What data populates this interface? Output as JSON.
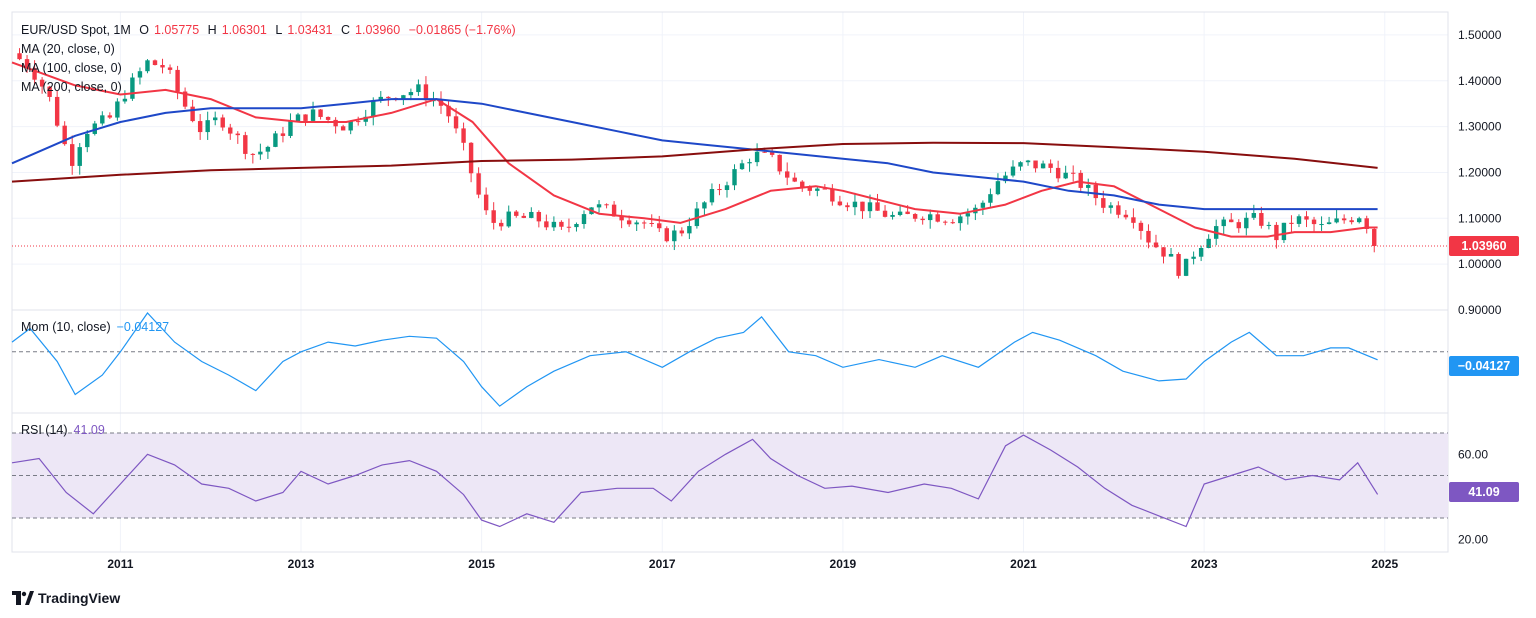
{
  "header": {
    "symbol": "EUR/USD Spot, 1M",
    "open_label": "O",
    "open": "1.05775",
    "high_label": "H",
    "high": "1.06301",
    "low_label": "L",
    "low": "1.03431",
    "close_label": "C",
    "close": "1.03960",
    "change": "−0.01865 (−1.76%)"
  },
  "indicators": {
    "ma20": "MA (20, close, 0)",
    "ma100": "MA (100, close, 0)",
    "ma200": "MA (200, close, 0)",
    "mom_label": "Mom (10, close)",
    "mom_value": "−0.04127",
    "rsi_label": "RSI (14)",
    "rsi_value": "41.09"
  },
  "price_tags": {
    "last_price": "1.03960",
    "mom_last": "−0.04127",
    "rsi_last": "41.09"
  },
  "brand": {
    "name": "TradingView"
  },
  "colors": {
    "up": "#089981",
    "down": "#f23645",
    "ma20": "#f23645",
    "ma100": "#1e48c8",
    "ma200": "#880e0e",
    "mom": "#2196f3",
    "rsi": "#7e57c2",
    "rsi_band": "#ede7f6"
  },
  "chart_data": [
    {
      "type": "candlestick",
      "title": "EUR/USD Spot, 1M",
      "y_ticks": [
        "0.90000",
        "1.00000",
        "1.10000",
        "1.20000",
        "1.30000",
        "1.40000",
        "1.50000"
      ],
      "x_ticks": [
        "2011",
        "2013",
        "2015",
        "2017",
        "2019",
        "2021",
        "2023",
        "2025"
      ],
      "ylim": [
        0.9,
        1.55
      ],
      "last_close": 1.0396,
      "close_series": {
        "t": [
          2009.8,
          2010.0,
          2010.2,
          2010.45,
          2010.6,
          2010.9,
          2011.0,
          2011.3,
          2011.5,
          2011.7,
          2011.9,
          2012.1,
          2012.45,
          2012.6,
          2012.9,
          2013.1,
          2013.5,
          2013.8,
          2014.0,
          2014.3,
          2014.6,
          2014.8,
          2015.0,
          2015.1,
          2015.3,
          2015.6,
          2015.9,
          2016.2,
          2016.5,
          2016.8,
          2017.0,
          2017.2,
          2017.5,
          2017.7,
          2018.0,
          2018.2,
          2018.5,
          2018.8,
          2019.0,
          2019.3,
          2019.6,
          2019.9,
          2020.2,
          2020.5,
          2020.7,
          2021.0,
          2021.3,
          2021.6,
          2021.9,
          2022.2,
          2022.4,
          2022.6,
          2022.75,
          2022.9,
          2023.1,
          2023.4,
          2023.6,
          2023.8,
          2024.0,
          2024.3,
          2024.6,
          2024.75,
          2024.9
        ],
        "close": [
          1.46,
          1.43,
          1.37,
          1.22,
          1.29,
          1.32,
          1.36,
          1.44,
          1.43,
          1.35,
          1.29,
          1.32,
          1.24,
          1.25,
          1.31,
          1.33,
          1.3,
          1.35,
          1.37,
          1.38,
          1.34,
          1.25,
          1.13,
          1.09,
          1.1,
          1.1,
          1.07,
          1.13,
          1.11,
          1.09,
          1.06,
          1.07,
          1.14,
          1.18,
          1.24,
          1.23,
          1.17,
          1.16,
          1.14,
          1.12,
          1.1,
          1.11,
          1.1,
          1.12,
          1.18,
          1.22,
          1.21,
          1.18,
          1.13,
          1.11,
          1.05,
          1.02,
          0.98,
          1.03,
          1.08,
          1.09,
          1.1,
          1.06,
          1.1,
          1.08,
          1.1,
          1.11,
          1.04
        ]
      },
      "series": [
        {
          "name": "MA (20, close, 0)",
          "x": [
            2009.8,
            2010.5,
            2011.0,
            2011.5,
            2012.0,
            2012.5,
            2013.0,
            2013.5,
            2014.0,
            2014.5,
            2014.9,
            2015.3,
            2015.8,
            2016.3,
            2016.8,
            2017.2,
            2017.7,
            2018.2,
            2018.7,
            2019.0,
            2019.4,
            2019.8,
            2020.3,
            2020.8,
            2021.2,
            2021.6,
            2022.0,
            2022.5,
            2022.9,
            2023.3,
            2023.7,
            2024.0,
            2024.4,
            2024.8,
            2024.92
          ],
          "y": [
            1.44,
            1.39,
            1.37,
            1.38,
            1.36,
            1.32,
            1.31,
            1.31,
            1.33,
            1.36,
            1.31,
            1.22,
            1.15,
            1.11,
            1.1,
            1.09,
            1.12,
            1.16,
            1.17,
            1.16,
            1.14,
            1.12,
            1.11,
            1.13,
            1.16,
            1.18,
            1.17,
            1.12,
            1.08,
            1.06,
            1.06,
            1.07,
            1.07,
            1.08,
            1.08
          ]
        },
        {
          "name": "MA (100, close, 0)",
          "x": [
            2009.8,
            2010.5,
            2011.0,
            2011.5,
            2012.0,
            2012.5,
            2013.0,
            2013.5,
            2014.0,
            2014.5,
            2015.0,
            2015.5,
            2016.0,
            2016.5,
            2017.0,
            2017.5,
            2018.0,
            2018.5,
            2019.0,
            2019.5,
            2020.0,
            2020.5,
            2021.0,
            2021.5,
            2022.0,
            2022.5,
            2023.0,
            2023.5,
            2024.0,
            2024.5,
            2024.92
          ],
          "y": [
            1.22,
            1.28,
            1.31,
            1.33,
            1.34,
            1.34,
            1.34,
            1.35,
            1.36,
            1.36,
            1.35,
            1.33,
            1.31,
            1.29,
            1.27,
            1.26,
            1.25,
            1.24,
            1.23,
            1.22,
            1.2,
            1.19,
            1.18,
            1.16,
            1.15,
            1.13,
            1.12,
            1.12,
            1.12,
            1.12,
            1.12
          ]
        },
        {
          "name": "MA (200, close, 0)",
          "x": [
            2009.8,
            2011.0,
            2012.0,
            2013.0,
            2014.0,
            2015.0,
            2016.0,
            2017.0,
            2018.0,
            2019.0,
            2020.0,
            2021.0,
            2022.0,
            2023.0,
            2024.0,
            2024.92
          ],
          "y": [
            1.18,
            1.195,
            1.205,
            1.21,
            1.215,
            1.225,
            1.228,
            1.235,
            1.25,
            1.262,
            1.265,
            1.264,
            1.255,
            1.245,
            1.23,
            1.21
          ]
        }
      ]
    },
    {
      "type": "line",
      "name": "Mom (10, close)",
      "zero_line": 0,
      "ylim": [
        -0.3,
        0.2
      ],
      "last": -0.04127,
      "x": [
        2009.8,
        2010.0,
        2010.3,
        2010.5,
        2010.8,
        2011.0,
        2011.3,
        2011.6,
        2011.9,
        2012.2,
        2012.5,
        2012.8,
        2013.0,
        2013.3,
        2013.6,
        2013.9,
        2014.2,
        2014.5,
        2014.8,
        2015.0,
        2015.2,
        2015.5,
        2015.8,
        2016.2,
        2016.6,
        2017.0,
        2017.3,
        2017.6,
        2017.9,
        2018.1,
        2018.4,
        2018.7,
        2019.0,
        2019.4,
        2019.8,
        2020.1,
        2020.5,
        2020.9,
        2021.1,
        2021.4,
        2021.8,
        2022.1,
        2022.5,
        2022.8,
        2023.0,
        2023.3,
        2023.5,
        2023.8,
        2024.1,
        2024.4,
        2024.6,
        2024.92
      ],
      "y": [
        0.05,
        0.12,
        -0.05,
        -0.22,
        -0.12,
        0.0,
        0.2,
        0.05,
        -0.05,
        -0.12,
        -0.2,
        -0.05,
        0.0,
        0.05,
        0.03,
        0.06,
        0.08,
        0.07,
        -0.05,
        -0.18,
        -0.28,
        -0.18,
        -0.1,
        -0.02,
        0.0,
        -0.08,
        0.0,
        0.07,
        0.1,
        0.18,
        0.0,
        -0.02,
        -0.08,
        -0.04,
        -0.08,
        -0.02,
        -0.08,
        0.05,
        0.1,
        0.06,
        -0.02,
        -0.1,
        -0.15,
        -0.14,
        -0.05,
        0.05,
        0.1,
        -0.02,
        -0.02,
        0.02,
        0.02,
        -0.04127
      ]
    },
    {
      "type": "line",
      "name": "RSI (14)",
      "y_ticks": [
        "20.00",
        "60.00"
      ],
      "ylim": [
        14,
        78
      ],
      "band": [
        30,
        70
      ],
      "mid": 50,
      "last": 41.09,
      "x": [
        2009.8,
        2010.1,
        2010.4,
        2010.7,
        2011.0,
        2011.3,
        2011.6,
        2011.9,
        2012.2,
        2012.5,
        2012.8,
        2013.0,
        2013.3,
        2013.6,
        2013.9,
        2014.2,
        2014.5,
        2014.8,
        2015.0,
        2015.2,
        2015.5,
        2015.8,
        2016.1,
        2016.5,
        2016.9,
        2017.1,
        2017.4,
        2017.7,
        2018.0,
        2018.2,
        2018.5,
        2018.8,
        2019.1,
        2019.5,
        2019.9,
        2020.2,
        2020.5,
        2020.8,
        2021.0,
        2021.3,
        2021.6,
        2021.9,
        2022.2,
        2022.5,
        2022.8,
        2023.0,
        2023.3,
        2023.6,
        2023.9,
        2024.2,
        2024.5,
        2024.7,
        2024.92
      ],
      "y": [
        56,
        58,
        42,
        32,
        46,
        60,
        55,
        46,
        44,
        38,
        42,
        52,
        46,
        50,
        55,
        57,
        52,
        41,
        29,
        26,
        32,
        28,
        42,
        44,
        44,
        38,
        52,
        60,
        67,
        58,
        50,
        44,
        45,
        42,
        46,
        44,
        39,
        64,
        69,
        62,
        54,
        44,
        36,
        31,
        26,
        46,
        50,
        54,
        48,
        50,
        48,
        56,
        41.09
      ]
    }
  ]
}
